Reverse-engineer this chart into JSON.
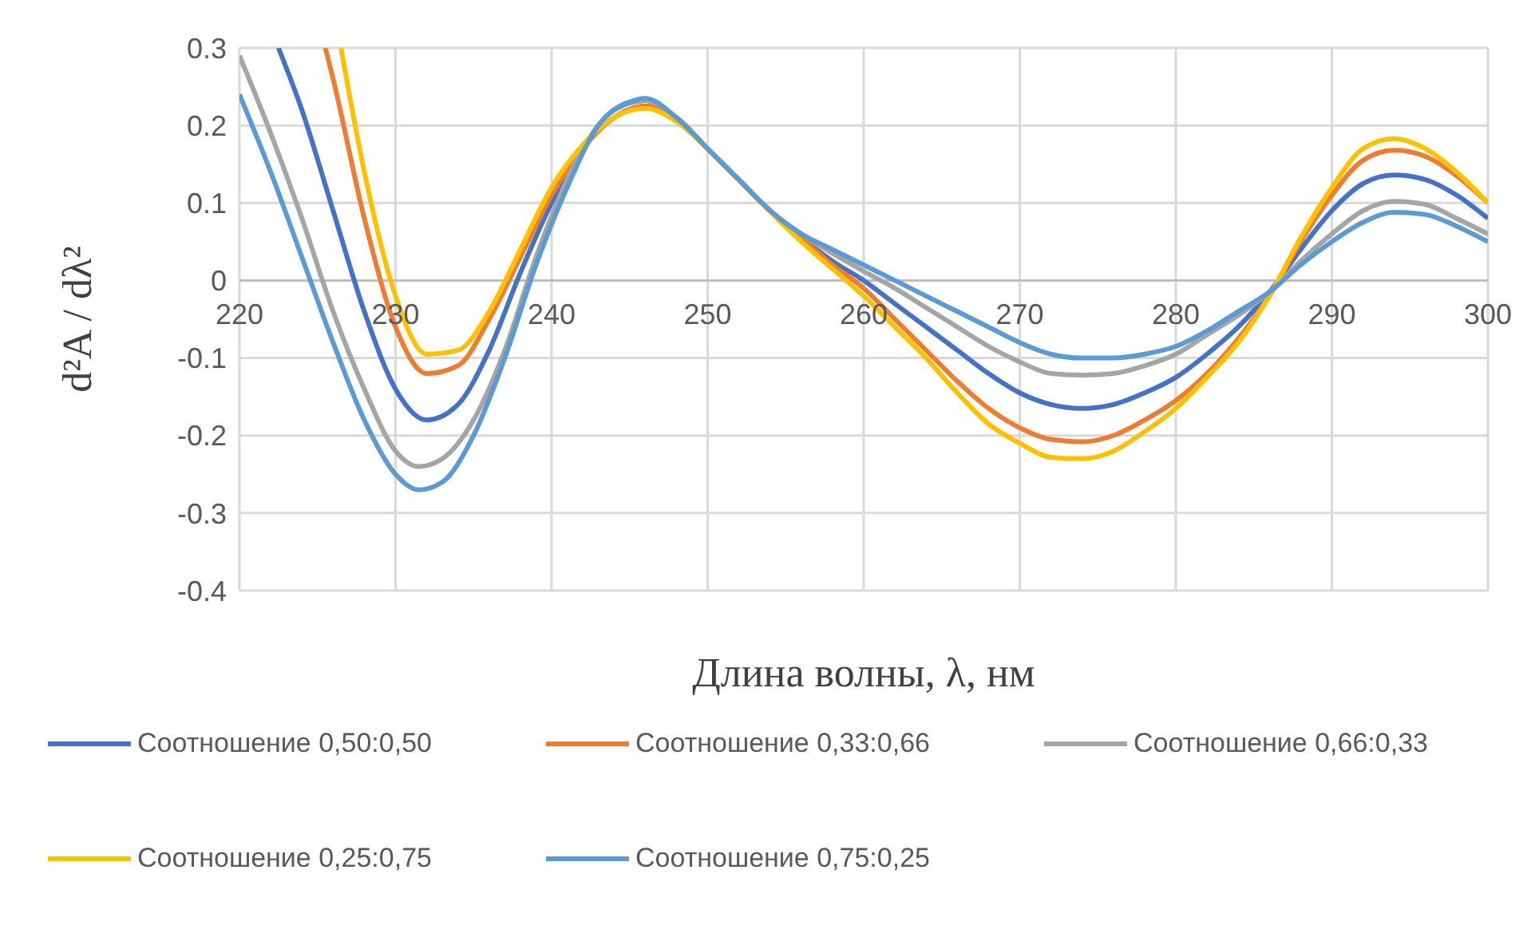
{
  "chart_data": {
    "type": "line",
    "xlabel": "Длина волны, λ, нм",
    "ylabel": "d²A / dλ²",
    "xlim": [
      220,
      300
    ],
    "xticks": [
      220,
      230,
      240,
      250,
      260,
      270,
      280,
      290,
      300
    ],
    "ylim": [
      -0.4,
      0.3
    ],
    "yticks": [
      -0.4,
      -0.3,
      -0.2,
      -0.1,
      0,
      0.1,
      0.2,
      0.3
    ],
    "grid": true,
    "legend": "bottom",
    "marker": "none",
    "line_style": "solid",
    "series": [
      {
        "name": "Соотношение 0,50:0,50",
        "color": "#4472c4",
        "x": [
          222.5,
          224,
          226,
          228,
          230,
          232,
          234,
          236,
          238,
          240,
          242,
          244,
          246,
          248,
          250,
          252,
          254,
          256,
          258,
          260,
          262,
          264,
          266,
          268,
          270,
          272,
          274,
          276,
          278,
          280,
          282,
          284,
          286,
          288,
          290,
          292,
          294,
          296,
          298,
          300
        ],
        "values": [
          0.3,
          0.22,
          0.09,
          -0.04,
          -0.14,
          -0.18,
          -0.16,
          -0.09,
          0.01,
          0.1,
          0.17,
          0.22,
          0.232,
          0.21,
          0.17,
          0.13,
          0.09,
          0.055,
          0.025,
          0.0,
          -0.03,
          -0.06,
          -0.09,
          -0.12,
          -0.145,
          -0.16,
          -0.165,
          -0.16,
          -0.145,
          -0.125,
          -0.095,
          -0.06,
          -0.015,
          0.04,
          0.09,
          0.125,
          0.136,
          0.13,
          0.11,
          0.08
        ]
      },
      {
        "name": "Соотношение 0,33:0,66",
        "color": "#ed7d31",
        "x": [
          225.5,
          226,
          228,
          230,
          232,
          234,
          236,
          238,
          240,
          242,
          244,
          246,
          248,
          250,
          252,
          254,
          256,
          258,
          260,
          262,
          264,
          266,
          268,
          270,
          272,
          274,
          276,
          278,
          280,
          282,
          284,
          286,
          288,
          290,
          292,
          294,
          296,
          298,
          300
        ],
        "values": [
          0.3,
          0.26,
          0.08,
          -0.06,
          -0.12,
          -0.11,
          -0.05,
          0.03,
          0.11,
          0.17,
          0.21,
          0.225,
          0.21,
          0.17,
          0.13,
          0.09,
          0.055,
          0.02,
          -0.01,
          -0.05,
          -0.09,
          -0.13,
          -0.165,
          -0.19,
          -0.205,
          -0.208,
          -0.2,
          -0.18,
          -0.155,
          -0.12,
          -0.075,
          -0.02,
          0.05,
          0.11,
          0.155,
          0.168,
          0.16,
          0.135,
          0.1
        ]
      },
      {
        "name": "Соотношение 0,66:0,33",
        "color": "#a5a5a5",
        "x": [
          220,
          222,
          224,
          226,
          228,
          230,
          231.5,
          233,
          235,
          237,
          239,
          241,
          243,
          245,
          246,
          248,
          250,
          252,
          254,
          256,
          258,
          260,
          262,
          264,
          266,
          268,
          270,
          272,
          274,
          276,
          278,
          280,
          282,
          284,
          286,
          288,
          290,
          292,
          294,
          296,
          298,
          300
        ],
        "values": [
          0.29,
          0.19,
          0.08,
          -0.04,
          -0.14,
          -0.22,
          -0.24,
          -0.23,
          -0.18,
          -0.09,
          0.03,
          0.13,
          0.2,
          0.23,
          0.232,
          0.21,
          0.17,
          0.13,
          0.09,
          0.06,
          0.035,
          0.012,
          -0.01,
          -0.035,
          -0.06,
          -0.085,
          -0.105,
          -0.12,
          -0.122,
          -0.12,
          -0.11,
          -0.095,
          -0.07,
          -0.045,
          -0.015,
          0.025,
          0.06,
          0.09,
          0.102,
          0.098,
          0.08,
          0.06
        ]
      },
      {
        "name": "Соотношение 0,25:0,75",
        "color": "#ffc000",
        "x": [
          226.5,
          228,
          230,
          232,
          234,
          236,
          238,
          240,
          242,
          244,
          246,
          248,
          250,
          252,
          256,
          258,
          260,
          262,
          264,
          266,
          268,
          270,
          272,
          274,
          276,
          278,
          280,
          282,
          284,
          286,
          288,
          290,
          292,
          294,
          296,
          298,
          300
        ],
        "values": [
          0.3,
          0.14,
          -0.02,
          -0.095,
          -0.09,
          -0.04,
          0.04,
          0.12,
          0.175,
          0.21,
          0.222,
          0.205,
          0.17,
          0.13,
          0.05,
          0.015,
          -0.02,
          -0.06,
          -0.1,
          -0.145,
          -0.185,
          -0.21,
          -0.228,
          -0.23,
          -0.22,
          -0.195,
          -0.165,
          -0.125,
          -0.08,
          -0.02,
          0.055,
          0.12,
          0.17,
          0.183,
          0.17,
          0.14,
          0.1
        ]
      },
      {
        "name": "Соотношение 0,75:0,25",
        "color": "#5b9bd5",
        "x": [
          220,
          222,
          224,
          226,
          228,
          230,
          231.5,
          233,
          235,
          237,
          239,
          241,
          243,
          245,
          246,
          248,
          250,
          252,
          254,
          256,
          258,
          260,
          262,
          264,
          266,
          268,
          270,
          272,
          274,
          276,
          278,
          280,
          282,
          284,
          286,
          288,
          290,
          292,
          294,
          296,
          298,
          300
        ],
        "values": [
          0.24,
          0.14,
          0.03,
          -0.08,
          -0.18,
          -0.25,
          -0.27,
          -0.26,
          -0.2,
          -0.1,
          0.02,
          0.12,
          0.2,
          0.23,
          0.235,
          0.21,
          0.17,
          0.13,
          0.09,
          0.06,
          0.04,
          0.02,
          0.0,
          -0.02,
          -0.04,
          -0.06,
          -0.08,
          -0.095,
          -0.1,
          -0.1,
          -0.095,
          -0.085,
          -0.065,
          -0.04,
          -0.015,
          0.02,
          0.05,
          0.075,
          0.088,
          0.085,
          0.07,
          0.05
        ]
      }
    ]
  }
}
